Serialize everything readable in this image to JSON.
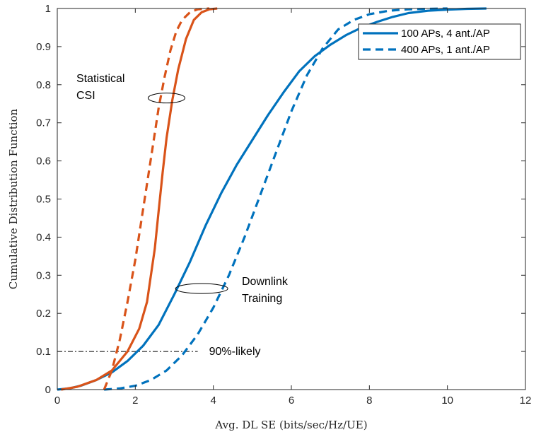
{
  "chart_data": {
    "type": "line",
    "title": "",
    "xlabel": "Avg. DL SE (bits/sec/Hz/UE)",
    "ylabel": "Cumulative Distribution Function",
    "xlim": [
      0,
      12
    ],
    "ylim": [
      0,
      1
    ],
    "xticks": [
      0,
      2,
      4,
      6,
      8,
      10,
      12
    ],
    "xtick_labels": [
      "0",
      "2",
      "4",
      "6",
      "8",
      "10",
      "12"
    ],
    "yticks": [
      0,
      0.1,
      0.2,
      0.3,
      0.4,
      0.5,
      0.6,
      0.7,
      0.8,
      0.9,
      1
    ],
    "ytick_labels": [
      "0",
      "0.1",
      "0.2",
      "0.3",
      "0.4",
      "0.5",
      "0.6",
      "0.7",
      "0.8",
      "0.9",
      "1"
    ],
    "grid": false,
    "legend_position": "top-right",
    "legend": [
      {
        "label": "100 APs, 4 ant./AP",
        "style": "solid",
        "color": "#0072BD"
      },
      {
        "label": "400 APs, 1 ant./AP",
        "style": "dashed",
        "color": "#0072BD"
      }
    ],
    "series": [
      {
        "group": "Downlink Training",
        "style": "solid",
        "color": "#0072BD",
        "x": [
          0.0,
          0.3,
          0.6,
          1.0,
          1.4,
          1.8,
          2.2,
          2.6,
          3.0,
          3.4,
          3.8,
          4.2,
          4.6,
          5.0,
          5.4,
          5.8,
          6.2,
          6.6,
          7.0,
          7.4,
          7.8,
          8.2,
          8.6,
          9.0,
          9.5,
          10.0,
          10.5,
          11.0
        ],
        "y": [
          0.0,
          0.003,
          0.01,
          0.025,
          0.045,
          0.075,
          0.115,
          0.17,
          0.25,
          0.335,
          0.43,
          0.515,
          0.59,
          0.655,
          0.72,
          0.78,
          0.835,
          0.875,
          0.905,
          0.93,
          0.95,
          0.965,
          0.978,
          0.988,
          0.994,
          0.997,
          0.999,
          1.0
        ]
      },
      {
        "group": "Downlink Training",
        "style": "dashed",
        "color": "#0072BD",
        "x": [
          1.2,
          1.6,
          2.0,
          2.4,
          2.8,
          3.2,
          3.6,
          4.0,
          4.4,
          4.8,
          5.2,
          5.6,
          6.0,
          6.4,
          6.8,
          7.2,
          7.6,
          8.0,
          8.5,
          9.0,
          9.5,
          10.0
        ],
        "y": [
          0.0,
          0.003,
          0.01,
          0.025,
          0.05,
          0.09,
          0.145,
          0.215,
          0.3,
          0.4,
          0.51,
          0.62,
          0.73,
          0.825,
          0.895,
          0.945,
          0.97,
          0.985,
          0.994,
          0.998,
          0.999,
          1.0
        ]
      },
      {
        "group": "Statistical CSI",
        "style": "solid",
        "color": "#D95319",
        "x": [
          0.1,
          0.5,
          1.0,
          1.4,
          1.8,
          2.1,
          2.3,
          2.5,
          2.6,
          2.7,
          2.8,
          2.95,
          3.1,
          3.3,
          3.5,
          3.7,
          3.9,
          4.1
        ],
        "y": [
          0.0,
          0.007,
          0.025,
          0.05,
          0.1,
          0.16,
          0.23,
          0.37,
          0.47,
          0.57,
          0.66,
          0.76,
          0.84,
          0.92,
          0.97,
          0.99,
          0.998,
          1.0
        ]
      },
      {
        "group": "Statistical CSI",
        "style": "dashed",
        "color": "#D95319",
        "x": [
          1.2,
          1.4,
          1.6,
          1.8,
          2.0,
          2.15,
          2.3,
          2.45,
          2.6,
          2.75,
          2.9,
          3.05,
          3.2,
          3.4,
          3.6,
          3.9
        ],
        "y": [
          0.0,
          0.05,
          0.13,
          0.23,
          0.34,
          0.44,
          0.54,
          0.64,
          0.74,
          0.82,
          0.89,
          0.94,
          0.97,
          0.99,
          0.998,
          1.0
        ]
      }
    ],
    "reference_line": {
      "y": 0.1,
      "x": [
        0,
        3.6
      ],
      "style": "dash-dot",
      "label": "90%-likely"
    },
    "annotations": [
      {
        "text_lines": [
          "Statistical",
          "CSI"
        ],
        "ellipse_center": [
          2.8,
          0.765
        ]
      },
      {
        "text_lines": [
          "Downlink",
          "Training"
        ],
        "ellipse_center": [
          3.7,
          0.265
        ]
      }
    ]
  }
}
